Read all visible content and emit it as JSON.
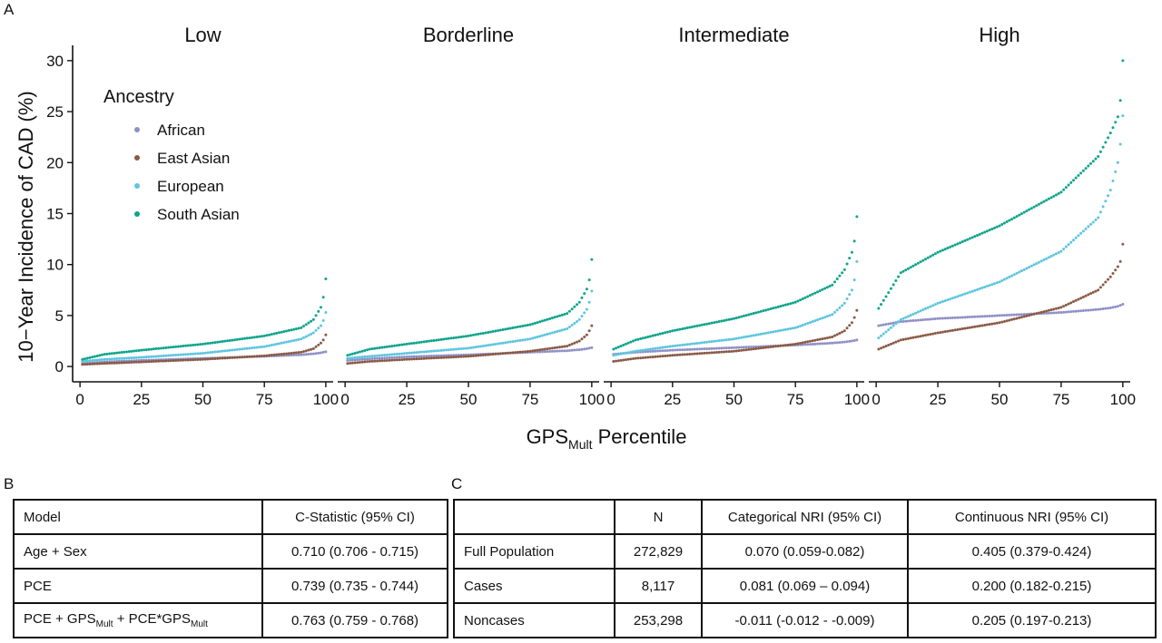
{
  "panel_a_letter": "A",
  "panel_b_letter": "B",
  "panel_c_letter": "C",
  "chart_data": {
    "type": "scatter",
    "ylabel": "10−Year Incidence of CAD (%)",
    "xlabel_main": "GPS",
    "xlabel_sub": "Mult",
    "xlabel_rest": " Percentile",
    "legend_title": "Ancestry",
    "legend_position": "top-left",
    "ylim": [
      -1.5,
      31.5
    ],
    "yticks": [
      0,
      5,
      10,
      15,
      20,
      25,
      30
    ],
    "xlim": [
      -3,
      103
    ],
    "xticks": [
      0,
      25,
      50,
      75,
      100
    ],
    "grid": false,
    "series_meta": [
      {
        "name": "African",
        "color": "#8f90c7"
      },
      {
        "name": "East Asian",
        "color": "#8a5a45"
      },
      {
        "name": "European",
        "color": "#5ec5de"
      },
      {
        "name": "South Asian",
        "color": "#0fa48a"
      }
    ],
    "facets": [
      {
        "title": "Low",
        "series": [
          {
            "name": "African",
            "x": [
              1,
              10,
              25,
              50,
              75,
              90,
              95,
              98,
              99,
              100
            ],
            "y": [
              0.3,
              0.45,
              0.6,
              0.8,
              1.0,
              1.15,
              1.25,
              1.35,
              1.4,
              1.45
            ]
          },
          {
            "name": "East Asian",
            "x": [
              1,
              10,
              25,
              50,
              75,
              90,
              95,
              98,
              99,
              100
            ],
            "y": [
              0.2,
              0.3,
              0.45,
              0.7,
              1.05,
              1.4,
              1.75,
              2.3,
              2.6,
              3.1
            ]
          },
          {
            "name": "European",
            "x": [
              1,
              10,
              25,
              50,
              75,
              90,
              95,
              98,
              99,
              100
            ],
            "y": [
              0.5,
              0.7,
              0.9,
              1.3,
              1.95,
              2.7,
              3.3,
              4.0,
              4.5,
              5.3
            ]
          },
          {
            "name": "South Asian",
            "x": [
              1,
              10,
              25,
              50,
              75,
              90,
              95,
              98,
              99,
              100
            ],
            "y": [
              0.7,
              1.2,
              1.6,
              2.2,
              3.0,
              3.8,
              4.6,
              5.8,
              6.8,
              8.6
            ]
          }
        ]
      },
      {
        "title": "Borderline",
        "series": [
          {
            "name": "African",
            "x": [
              1,
              10,
              25,
              50,
              75,
              90,
              95,
              98,
              99,
              100
            ],
            "y": [
              0.6,
              0.75,
              0.95,
              1.15,
              1.4,
              1.55,
              1.65,
              1.75,
              1.8,
              1.85
            ]
          },
          {
            "name": "East Asian",
            "x": [
              1,
              10,
              25,
              50,
              75,
              90,
              95,
              98,
              99,
              100
            ],
            "y": [
              0.3,
              0.5,
              0.7,
              1.0,
              1.5,
              2.0,
              2.5,
              3.1,
              3.5,
              4.0
            ]
          },
          {
            "name": "European",
            "x": [
              1,
              10,
              25,
              50,
              75,
              90,
              95,
              98,
              99,
              100
            ],
            "y": [
              0.8,
              1.0,
              1.3,
              1.8,
              2.7,
              3.7,
              4.6,
              5.6,
              6.3,
              7.4
            ]
          },
          {
            "name": "South Asian",
            "x": [
              1,
              10,
              25,
              50,
              75,
              90,
              95,
              98,
              99,
              100
            ],
            "y": [
              1.1,
              1.7,
              2.2,
              3.0,
              4.1,
              5.2,
              6.3,
              7.6,
              8.5,
              10.5
            ]
          }
        ]
      },
      {
        "title": "Intermediate",
        "series": [
          {
            "name": "African",
            "x": [
              1,
              10,
              25,
              50,
              75,
              90,
              95,
              98,
              99,
              100
            ],
            "y": [
              1.2,
              1.4,
              1.6,
              1.85,
              2.1,
              2.3,
              2.4,
              2.5,
              2.55,
              2.6
            ]
          },
          {
            "name": "East Asian",
            "x": [
              1,
              10,
              25,
              50,
              75,
              90,
              95,
              98,
              99,
              100
            ],
            "y": [
              0.5,
              0.8,
              1.1,
              1.5,
              2.2,
              2.9,
              3.5,
              4.3,
              4.8,
              5.5
            ]
          },
          {
            "name": "European",
            "x": [
              1,
              10,
              25,
              50,
              75,
              90,
              95,
              98,
              99,
              100
            ],
            "y": [
              1.1,
              1.5,
              2.0,
              2.7,
              3.8,
              5.1,
              6.2,
              7.5,
              8.5,
              10.3
            ]
          },
          {
            "name": "South Asian",
            "x": [
              1,
              10,
              25,
              50,
              75,
              90,
              95,
              98,
              99,
              100
            ],
            "y": [
              1.7,
              2.6,
              3.5,
              4.7,
              6.3,
              8.0,
              9.5,
              11.2,
              12.3,
              14.7
            ]
          }
        ]
      },
      {
        "title": "High",
        "series": [
          {
            "name": "African",
            "x": [
              1,
              10,
              25,
              50,
              75,
              90,
              95,
              98,
              99,
              100
            ],
            "y": [
              4.0,
              4.4,
              4.7,
              5.0,
              5.3,
              5.6,
              5.75,
              5.9,
              6.0,
              6.1
            ]
          },
          {
            "name": "East Asian",
            "x": [
              1,
              10,
              25,
              50,
              75,
              90,
              95,
              98,
              99,
              100
            ],
            "y": [
              1.7,
              2.6,
              3.3,
              4.3,
              5.8,
              7.5,
              8.8,
              9.8,
              10.3,
              12.0
            ]
          },
          {
            "name": "European",
            "x": [
              1,
              10,
              25,
              50,
              75,
              90,
              95,
              98,
              99,
              100
            ],
            "y": [
              2.8,
              4.6,
              6.2,
              8.3,
              11.3,
              14.6,
              17.3,
              20.0,
              21.8,
              24.6
            ]
          },
          {
            "name": "South Asian",
            "x": [
              1,
              10,
              25,
              50,
              75,
              90,
              95,
              98,
              99,
              100
            ],
            "y": [
              5.7,
              9.2,
              11.2,
              13.8,
              17.1,
              20.6,
              22.9,
              24.5,
              26.1,
              30.0
            ]
          }
        ]
      }
    ]
  },
  "table_b": {
    "header": [
      "Model",
      "C-Statistic (95% CI)"
    ],
    "rows": [
      [
        "Age + Sex",
        "0.710 (0.706 - 0.715)"
      ],
      [
        "PCE",
        "0.739 (0.735 - 0.744)"
      ]
    ],
    "row3": {
      "p1": "PCE + GPS",
      "s1": "Mult",
      "p2": " + PCE*GPS",
      "s2": "Mult",
      "value": "0.763 (0.759 - 0.768)"
    }
  },
  "table_c": {
    "header": [
      "",
      "N",
      "Categorical NRI (95% CI)",
      "Continuous NRI (95% CI)"
    ],
    "rows": [
      [
        "Full Population",
        "272,829",
        "0.070 (0.059-0.082)",
        "0.405 (0.379-0.424)"
      ],
      [
        "Cases",
        "8,117",
        "0.081 (0.069 – 0.094)",
        "0.200 (0.182-0.215)"
      ],
      [
        "Noncases",
        "253,298",
        "-0.011 (-0.012 - -0.009)",
        "0.205 (0.197-0.213)"
      ]
    ]
  }
}
